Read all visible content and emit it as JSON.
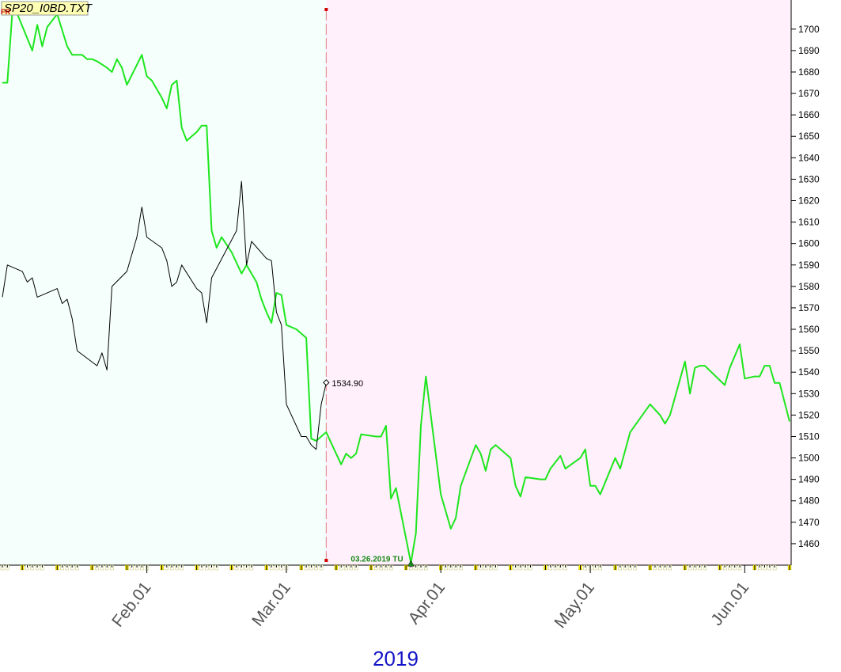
{
  "file_name": "SP20_I0BD.TXT",
  "marker_tag": "FR",
  "colors": {
    "past_bg": "#f5fffc",
    "future_bg": "#fff0fb",
    "forecast_line": "#1ee61e",
    "price_line": "#000000",
    "divider": "#e08080",
    "year_text": "#1414c8",
    "file_box": "#ffffb4"
  },
  "chart_data": {
    "type": "line",
    "title": "",
    "year_label": "2019",
    "y_ticks": [
      1460,
      1470,
      1480,
      1490,
      1500,
      1510,
      1520,
      1530,
      1540,
      1550,
      1560,
      1570,
      1580,
      1590,
      1600,
      1610,
      1620,
      1630,
      1640,
      1650,
      1660,
      1670,
      1680,
      1690,
      1700
    ],
    "ylim": [
      1450,
      1711
    ],
    "xlim": [
      "2019-01-03",
      "2019-06-10"
    ],
    "x_labels": [
      {
        "date": "2019-02-01",
        "label": "Feb.01"
      },
      {
        "date": "2019-03-01",
        "label": "Mar.01"
      },
      {
        "date": "2019-04-01",
        "label": "Apr.01"
      },
      {
        "date": "2019-05-01",
        "label": "May.01"
      },
      {
        "date": "2019-06-01",
        "label": "Jun.01"
      }
    ],
    "divider_date": "2019-03-09",
    "last_price": {
      "date": "2019-03-09",
      "value": 1534.9,
      "label": "1534.90"
    },
    "min_marker": {
      "date": "2019-03-26",
      "value": 1451,
      "label": "03.26.2019 TU"
    },
    "series": [
      {
        "points": [
          [
            "2019-01-03",
            1675
          ],
          [
            "2019-01-04",
            1675
          ],
          [
            "2019-01-05",
            1708
          ],
          [
            "2019-01-06",
            1707
          ],
          [
            "2019-01-09",
            1690
          ],
          [
            "2019-01-10",
            1702
          ],
          [
            "2019-01-11",
            1692
          ],
          [
            "2019-01-12",
            1701
          ],
          [
            "2019-01-14",
            1707
          ],
          [
            "2019-01-16",
            1692
          ],
          [
            "2019-01-17",
            1688
          ],
          [
            "2019-01-18",
            1688
          ],
          [
            "2019-01-19",
            1688
          ],
          [
            "2019-01-20",
            1686
          ],
          [
            "2019-01-21",
            1686
          ],
          [
            "2019-01-22",
            1685
          ],
          [
            "2019-01-24",
            1682
          ],
          [
            "2019-01-25",
            1680
          ],
          [
            "2019-01-26",
            1686
          ],
          [
            "2019-01-27",
            1682
          ],
          [
            "2019-01-28",
            1674
          ],
          [
            "2019-01-31",
            1688
          ],
          [
            "2019-02-01",
            1678
          ],
          [
            "2019-02-02",
            1676
          ],
          [
            "2019-02-04",
            1668
          ],
          [
            "2019-02-05",
            1663
          ],
          [
            "2019-02-06",
            1674
          ],
          [
            "2019-02-07",
            1676
          ],
          [
            "2019-02-08",
            1654
          ],
          [
            "2019-02-09",
            1648
          ],
          [
            "2019-02-11",
            1652
          ],
          [
            "2019-02-12",
            1655
          ],
          [
            "2019-02-13",
            1655
          ],
          [
            "2019-02-14",
            1606
          ],
          [
            "2019-02-15",
            1598
          ],
          [
            "2019-02-16",
            1603
          ],
          [
            "2019-02-18",
            1596
          ],
          [
            "2019-02-20",
            1586
          ],
          [
            "2019-02-21",
            1590
          ],
          [
            "2019-02-22",
            1586
          ],
          [
            "2019-02-23",
            1582
          ],
          [
            "2019-02-24",
            1574
          ],
          [
            "2019-02-25",
            1568
          ],
          [
            "2019-02-26",
            1563
          ],
          [
            "2019-02-27",
            1577
          ],
          [
            "2019-02-28",
            1576
          ],
          [
            "2019-03-01",
            1562
          ],
          [
            "2019-03-03",
            1560
          ],
          [
            "2019-03-04",
            1558
          ],
          [
            "2019-03-05",
            1556
          ],
          [
            "2019-03-06",
            1509
          ],
          [
            "2019-03-07",
            1508
          ],
          [
            "2019-03-08",
            1510
          ],
          [
            "2019-03-09",
            1512
          ],
          [
            "2019-03-12",
            1497
          ],
          [
            "2019-03-13",
            1502
          ],
          [
            "2019-03-14",
            1500
          ],
          [
            "2019-03-15",
            1502
          ],
          [
            "2019-03-16",
            1511
          ],
          [
            "2019-03-19",
            1510
          ],
          [
            "2019-03-20",
            1510
          ],
          [
            "2019-03-21",
            1515
          ],
          [
            "2019-03-22",
            1481
          ],
          [
            "2019-03-23",
            1486
          ],
          [
            "2019-03-26",
            1451
          ],
          [
            "2019-03-27",
            1465
          ],
          [
            "2019-03-28",
            1515
          ],
          [
            "2019-03-29",
            1538
          ],
          [
            "2019-04-01",
            1483
          ],
          [
            "2019-04-03",
            1467
          ],
          [
            "2019-04-04",
            1472
          ],
          [
            "2019-04-05",
            1487
          ],
          [
            "2019-04-08",
            1506
          ],
          [
            "2019-04-09",
            1502
          ],
          [
            "2019-04-10",
            1494
          ],
          [
            "2019-04-11",
            1504
          ],
          [
            "2019-04-12",
            1506
          ],
          [
            "2019-04-15",
            1500
          ],
          [
            "2019-04-16",
            1487
          ],
          [
            "2019-04-17",
            1482
          ],
          [
            "2019-04-18",
            1491
          ],
          [
            "2019-04-21",
            1490
          ],
          [
            "2019-04-22",
            1490
          ],
          [
            "2019-04-23",
            1495
          ],
          [
            "2019-04-25",
            1501
          ],
          [
            "2019-04-26",
            1495
          ],
          [
            "2019-04-29",
            1500
          ],
          [
            "2019-04-30",
            1504
          ],
          [
            "2019-05-01",
            1487
          ],
          [
            "2019-05-02",
            1487
          ],
          [
            "2019-05-03",
            1483
          ],
          [
            "2019-05-06",
            1500
          ],
          [
            "2019-05-07",
            1495
          ],
          [
            "2019-05-09",
            1512
          ],
          [
            "2019-05-13",
            1525
          ],
          [
            "2019-05-15",
            1520
          ],
          [
            "2019-05-16",
            1516
          ],
          [
            "2019-05-17",
            1520
          ],
          [
            "2019-05-20",
            1545
          ],
          [
            "2019-05-21",
            1530
          ],
          [
            "2019-05-22",
            1542
          ],
          [
            "2019-05-23",
            1543
          ],
          [
            "2019-05-24",
            1543
          ],
          [
            "2019-05-28",
            1534
          ],
          [
            "2019-05-29",
            1542
          ],
          [
            "2019-05-31",
            1553
          ],
          [
            "2019-06-01",
            1537
          ],
          [
            "2019-06-03",
            1538
          ],
          [
            "2019-06-04",
            1538
          ],
          [
            "2019-06-05",
            1543
          ],
          [
            "2019-06-06",
            1543
          ],
          [
            "2019-06-07",
            1535
          ],
          [
            "2019-06-08",
            1535
          ],
          [
            "2019-06-10",
            1517
          ]
        ]
      },
      {
        "points": [
          [
            "2019-01-03",
            1575
          ],
          [
            "2019-01-04",
            1590
          ],
          [
            "2019-01-07",
            1587
          ],
          [
            "2019-01-08",
            1582
          ],
          [
            "2019-01-09",
            1584
          ],
          [
            "2019-01-10",
            1575
          ],
          [
            "2019-01-14",
            1579
          ],
          [
            "2019-01-15",
            1572
          ],
          [
            "2019-01-16",
            1574
          ],
          [
            "2019-01-17",
            1565
          ],
          [
            "2019-01-18",
            1550
          ],
          [
            "2019-01-22",
            1543
          ],
          [
            "2019-01-23",
            1549
          ],
          [
            "2019-01-24",
            1541
          ],
          [
            "2019-01-25",
            1580
          ],
          [
            "2019-01-28",
            1587
          ],
          [
            "2019-01-30",
            1603
          ],
          [
            "2019-01-31",
            1617
          ],
          [
            "2019-02-01",
            1603
          ],
          [
            "2019-02-04",
            1598
          ],
          [
            "2019-02-05",
            1592
          ],
          [
            "2019-02-06",
            1580
          ],
          [
            "2019-02-07",
            1582
          ],
          [
            "2019-02-08",
            1590
          ],
          [
            "2019-02-11",
            1579
          ],
          [
            "2019-02-12",
            1577
          ],
          [
            "2019-02-13",
            1563
          ],
          [
            "2019-02-14",
            1584
          ],
          [
            "2019-02-19",
            1606
          ],
          [
            "2019-02-20",
            1629
          ],
          [
            "2019-02-21",
            1590
          ],
          [
            "2019-02-22",
            1601
          ],
          [
            "2019-02-25",
            1593
          ],
          [
            "2019-02-26",
            1592
          ],
          [
            "2019-02-27",
            1568
          ],
          [
            "2019-02-28",
            1562
          ],
          [
            "2019-03-01",
            1525
          ],
          [
            "2019-03-04",
            1510
          ],
          [
            "2019-03-05",
            1510
          ],
          [
            "2019-03-06",
            1506
          ],
          [
            "2019-03-07",
            1504
          ],
          [
            "2019-03-08",
            1525
          ],
          [
            "2019-03-09",
            1534.9
          ]
        ]
      }
    ]
  }
}
